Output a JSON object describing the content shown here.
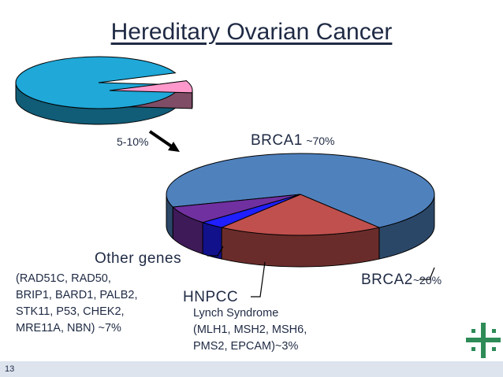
{
  "title": "Hereditary Ovarian Cancer",
  "page_number": "13",
  "chart_data": [
    {
      "type": "pie",
      "title": "",
      "slices": [
        {
          "label": "",
          "value": 92.5,
          "color": "#1fa8d8"
        },
        {
          "label": "5-10%",
          "value": 7.5,
          "color": "#ff99cc"
        }
      ]
    },
    {
      "type": "pie",
      "title": "Hereditary Ovarian Cancer",
      "slices": [
        {
          "name": "BRCA1",
          "pct": "~70%",
          "value": 70,
          "color": "#4f81bd"
        },
        {
          "name": "BRCA2",
          "pct": "~20%",
          "value": 20,
          "color": "#c0504d"
        },
        {
          "name": "HNPCC",
          "pct": "",
          "value": 3,
          "color": "#1f1fff"
        },
        {
          "name": "Other genes",
          "pct": "",
          "value": 7,
          "color": "#7030a0"
        }
      ],
      "annotations": {
        "other_genes_detail": "(RAD51C, RAD50,\nBRIP1, BARD1, PALB2,\nSTK11, P53, CHEK2,\nMRE11A, NBN) ~7%",
        "hnpcc_detail": "Lynch Syndrome\n(MLH1, MSH2, MSH6,\nPMS2, EPCAM)~3%"
      }
    }
  ]
}
